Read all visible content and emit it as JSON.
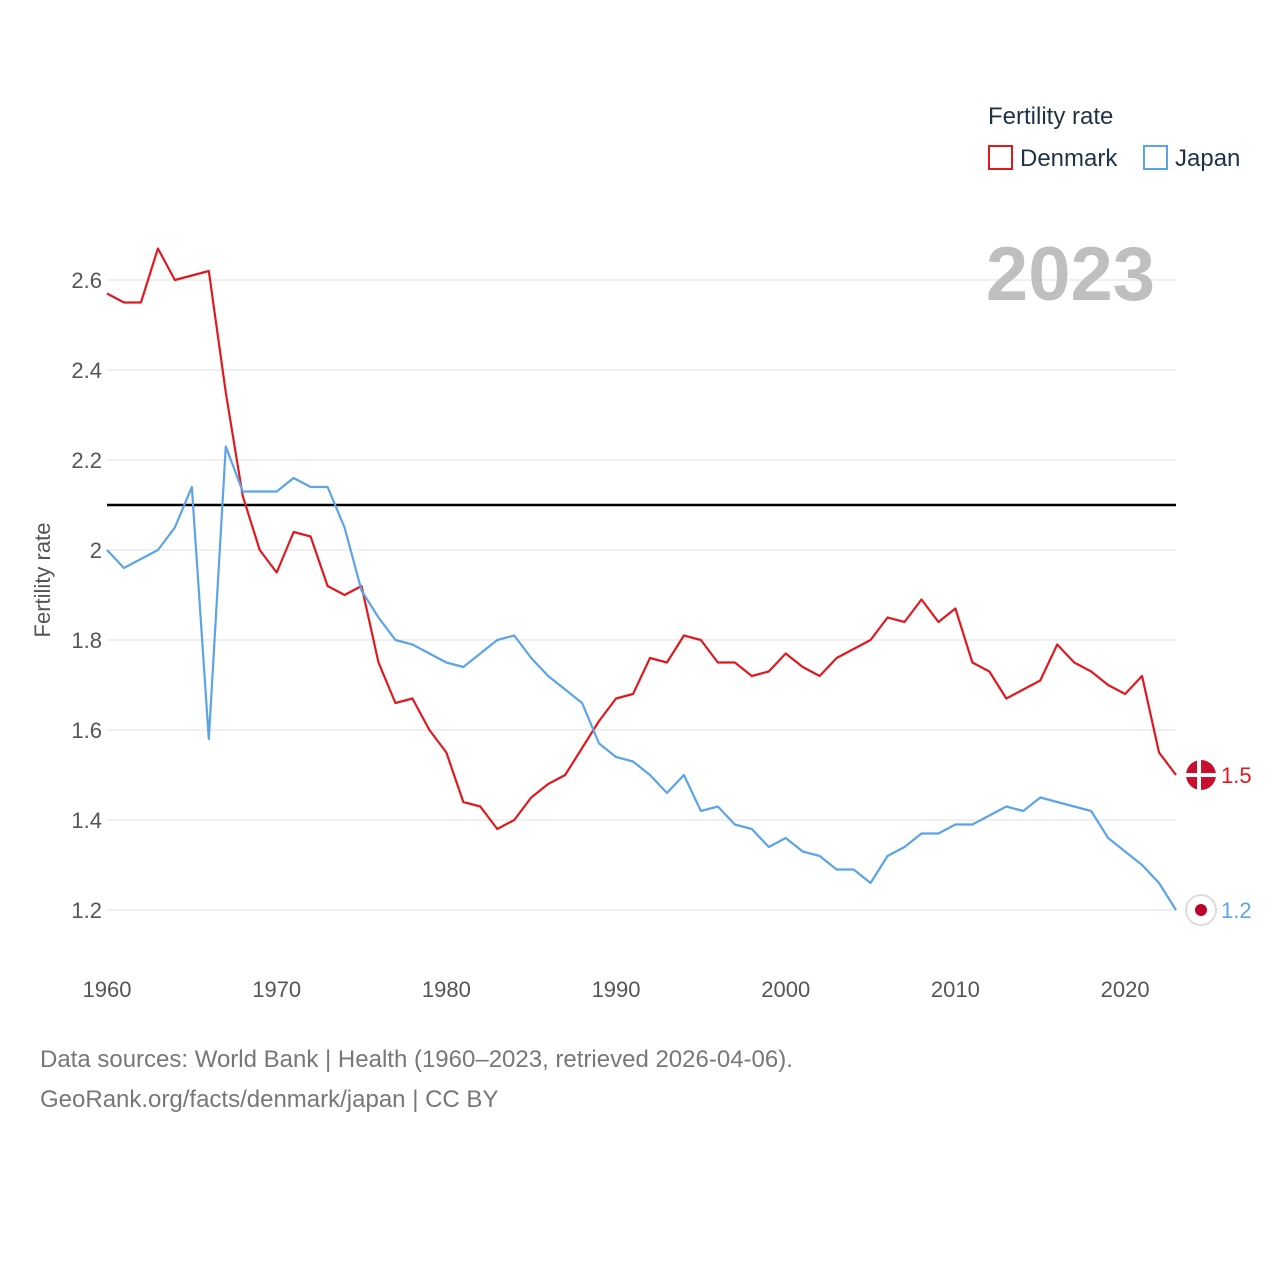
{
  "chart_data": {
    "type": "line",
    "title": "",
    "year_label": "2023",
    "xlabel": "",
    "ylabel": "Fertility rate",
    "x": [
      1960,
      1961,
      1962,
      1963,
      1964,
      1965,
      1966,
      1967,
      1968,
      1969,
      1970,
      1971,
      1972,
      1973,
      1974,
      1975,
      1976,
      1977,
      1978,
      1979,
      1980,
      1981,
      1982,
      1983,
      1984,
      1985,
      1986,
      1987,
      1988,
      1989,
      1990,
      1991,
      1992,
      1993,
      1994,
      1995,
      1996,
      1997,
      1998,
      1999,
      2000,
      2001,
      2002,
      2003,
      2004,
      2005,
      2006,
      2007,
      2008,
      2009,
      2010,
      2011,
      2012,
      2013,
      2014,
      2015,
      2016,
      2017,
      2018,
      2019,
      2020,
      2021,
      2022,
      2023
    ],
    "xlim": [
      1960,
      2023
    ],
    "ylim": [
      1.1,
      2.7
    ],
    "xticks": [
      "1960",
      "1970",
      "1980",
      "1990",
      "2000",
      "2010",
      "2020"
    ],
    "yticks": [
      "1.2",
      "1.4",
      "1.6",
      "1.8",
      "2",
      "2.2",
      "2.4",
      "2.6"
    ],
    "grid": true,
    "reference_line": 2.1,
    "legend": {
      "title": "Fertility rate",
      "position": "top-right"
    },
    "series": [
      {
        "name": "Denmark",
        "color": "#e0191f",
        "end_label": "1.5",
        "flag_icon": "denmark-flag-icon",
        "values": [
          2.57,
          2.55,
          2.55,
          2.67,
          2.6,
          2.61,
          2.62,
          2.35,
          2.12,
          2.0,
          1.95,
          2.04,
          2.03,
          1.92,
          1.9,
          1.92,
          1.75,
          1.66,
          1.67,
          1.6,
          1.55,
          1.44,
          1.43,
          1.38,
          1.4,
          1.45,
          1.48,
          1.5,
          1.56,
          1.62,
          1.67,
          1.68,
          1.76,
          1.75,
          1.81,
          1.8,
          1.75,
          1.75,
          1.72,
          1.73,
          1.77,
          1.74,
          1.72,
          1.76,
          1.78,
          1.8,
          1.85,
          1.84,
          1.89,
          1.84,
          1.87,
          1.75,
          1.73,
          1.67,
          1.69,
          1.71,
          1.79,
          1.75,
          1.73,
          1.7,
          1.68,
          1.72,
          1.55,
          1.5
        ]
      },
      {
        "name": "Japan",
        "color": "#5ba4e6",
        "end_label": "1.2",
        "flag_icon": "japan-flag-icon",
        "values": [
          2.0,
          1.96,
          1.98,
          2.0,
          2.05,
          2.14,
          1.58,
          2.23,
          2.13,
          2.13,
          2.13,
          2.16,
          2.14,
          2.14,
          2.05,
          1.91,
          1.85,
          1.8,
          1.79,
          1.77,
          1.75,
          1.74,
          1.77,
          1.8,
          1.81,
          1.76,
          1.72,
          1.69,
          1.66,
          1.57,
          1.54,
          1.53,
          1.5,
          1.46,
          1.5,
          1.42,
          1.43,
          1.39,
          1.38,
          1.34,
          1.36,
          1.33,
          1.32,
          1.29,
          1.29,
          1.26,
          1.32,
          1.34,
          1.37,
          1.37,
          1.39,
          1.39,
          1.41,
          1.43,
          1.42,
          1.45,
          1.44,
          1.43,
          1.42,
          1.36,
          1.33,
          1.3,
          1.26,
          1.2
        ]
      }
    ]
  },
  "footer": {
    "sources": "Data sources: World Bank | Health (1960–2023, retrieved 2026-04-06).",
    "credit": "GeoRank.org/facts/denmark/japan | CC BY"
  }
}
